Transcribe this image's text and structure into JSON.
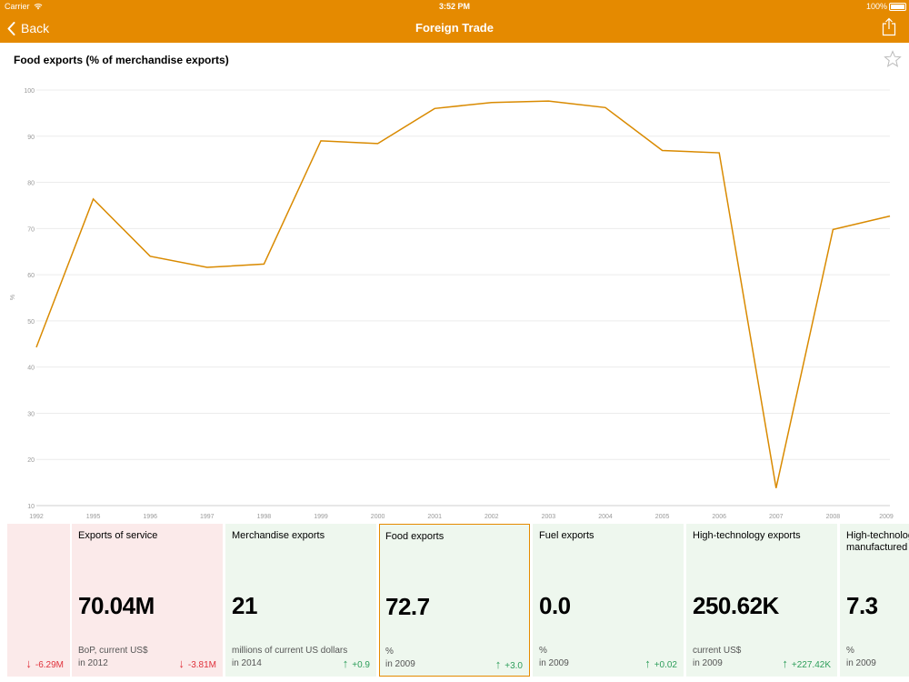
{
  "status_bar": {
    "carrier": "Carrier",
    "time": "3:52 PM",
    "battery": "100%"
  },
  "nav": {
    "back_label": "Back",
    "title": "Foreign Trade"
  },
  "chart_data": {
    "type": "line",
    "title": "Food exports (% of merchandise exports)",
    "ylabel": "%",
    "xlabel": "",
    "ylim": [
      10,
      100
    ],
    "yticks": [
      10,
      20,
      30,
      40,
      50,
      60,
      70,
      80,
      90,
      100
    ],
    "categories": [
      "1992",
      "1995",
      "1996",
      "1997",
      "1998",
      "1999",
      "2000",
      "2001",
      "2002",
      "2003",
      "2004",
      "2005",
      "2006",
      "2007",
      "2008",
      "2009"
    ],
    "values": [
      44.3,
      76.4,
      64.0,
      61.6,
      62.3,
      89.0,
      88.4,
      96.0,
      97.3,
      97.6,
      96.2,
      86.9,
      86.4,
      13.8,
      69.8,
      72.7
    ],
    "line_color": "#d98a00",
    "grid": true
  },
  "cards": [
    {
      "title": "",
      "value": "",
      "unit": "",
      "year": "",
      "change": "-6.29M",
      "arrow": "↓",
      "trend": "down"
    },
    {
      "title": "Exports of service",
      "value": "70.04M",
      "unit": "BoP, current US$",
      "year": "in 2012",
      "change": "-3.81M",
      "arrow": "↓",
      "trend": "down"
    },
    {
      "title": "Merchandise exports",
      "value": "21",
      "unit": "millions of current US dollars",
      "year": "in 2014",
      "change": "+0.9",
      "arrow": "↑",
      "trend": "up"
    },
    {
      "title": "Food exports",
      "value": "72.7",
      "unit": "%",
      "year": "in 2009",
      "change": "+3.0",
      "arrow": "↑",
      "trend": "up"
    },
    {
      "title": "Fuel exports",
      "value": "0.0",
      "unit": "%",
      "year": "in 2009",
      "change": "+0.02",
      "arrow": "↑",
      "trend": "up"
    },
    {
      "title": "High-technology exports",
      "value": "250.62K",
      "unit": "current US$",
      "year": "in 2009",
      "change": "+227.42K",
      "arrow": "↑",
      "trend": "up"
    },
    {
      "title": "High-technology exports (% of manufactured exports)",
      "value": "7.3",
      "unit": "%",
      "year": "in 2009",
      "change": "",
      "arrow": "",
      "trend": "up"
    }
  ],
  "colors": {
    "accent": "#e58a00",
    "up": "#2e9e5b",
    "down": "#e0313b"
  }
}
